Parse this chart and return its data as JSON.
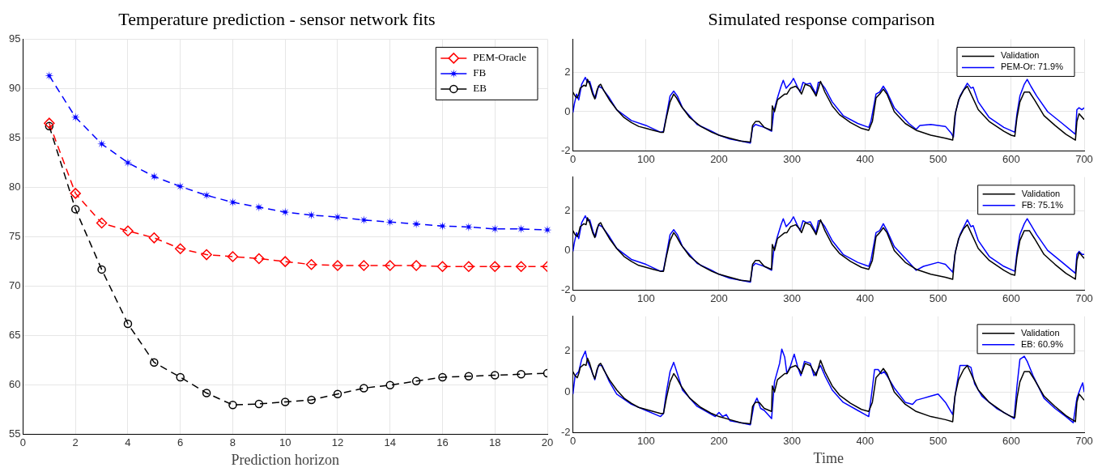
{
  "chart_data": [
    {
      "type": "line",
      "title": "Temperature prediction - sensor network fits",
      "xlabel": "Prediction horizon",
      "x": [
        1,
        2,
        3,
        4,
        5,
        6,
        7,
        8,
        9,
        10,
        11,
        12,
        13,
        14,
        15,
        16,
        17,
        18,
        19,
        20
      ],
      "xlim": [
        0,
        20
      ],
      "xticks": [
        0,
        2,
        4,
        6,
        8,
        10,
        12,
        14,
        16,
        18,
        20
      ],
      "ylim": [
        55,
        95
      ],
      "yticks": [
        55,
        60,
        65,
        70,
        75,
        80,
        85,
        90,
        95
      ],
      "grid": true,
      "legend": "top right",
      "line_style": "dashed",
      "series": [
        {
          "name": "PEM-Oracle",
          "color": "#ff0000",
          "marker": "diamond",
          "values": [
            86.5,
            79.4,
            76.4,
            75.6,
            74.9,
            73.8,
            73.2,
            73.0,
            72.8,
            72.5,
            72.2,
            72.1,
            72.1,
            72.1,
            72.1,
            72.0,
            72.0,
            72.0,
            72.0,
            72.0
          ]
        },
        {
          "name": "FB",
          "color": "#0000ff",
          "marker": "star",
          "values": [
            91.3,
            87.1,
            84.4,
            82.5,
            81.1,
            80.1,
            79.2,
            78.5,
            78.0,
            77.5,
            77.2,
            77.0,
            76.7,
            76.5,
            76.3,
            76.1,
            76.0,
            75.8,
            75.8,
            75.7
          ]
        },
        {
          "name": "EB",
          "color": "#000000",
          "marker": "circle",
          "values": [
            86.2,
            77.8,
            71.7,
            66.2,
            62.3,
            60.8,
            59.2,
            58.0,
            58.1,
            58.3,
            58.5,
            59.1,
            59.7,
            60.0,
            60.4,
            60.8,
            60.9,
            61.0,
            61.1,
            61.2
          ]
        }
      ]
    },
    {
      "type": "line",
      "title": "Simulated response comparison",
      "xlim": [
        0,
        700
      ],
      "xticks": [
        0,
        100,
        200,
        300,
        400,
        500,
        600,
        700
      ],
      "ylim": [
        -2,
        3.7
      ],
      "yticks": [
        -2,
        0,
        2
      ],
      "grid": true,
      "legend": "top right",
      "line_style": "solid",
      "marker": "none",
      "series": [
        {
          "name": "Validation",
          "color": "#000000",
          "x": [
            0,
            3,
            6,
            8,
            10,
            15,
            18,
            20,
            23,
            27,
            30,
            33,
            36,
            38,
            42,
            50,
            60,
            70,
            80,
            90,
            100,
            110,
            120,
            124,
            128,
            133,
            138,
            142,
            148,
            160,
            175,
            190,
            200,
            215,
            230,
            243,
            246,
            250,
            255,
            262,
            272,
            273,
            276,
            280,
            290,
            293,
            298,
            305,
            310,
            313,
            318,
            325,
            330,
            333,
            337,
            339,
            345,
            355,
            365,
            380,
            395,
            405,
            410,
            415,
            420,
            425,
            430,
            440,
            455,
            470,
            490,
            510,
            520,
            523,
            528,
            535,
            540,
            545,
            555,
            570,
            590,
            600,
            605,
            608,
            612,
            618,
            625,
            632,
            645,
            660,
            675,
            688,
            690,
            693,
            700
          ],
          "values": [
            1.0,
            0.8,
            0.7,
            0.9,
            1.2,
            1.35,
            1.3,
            1.65,
            1.4,
            0.9,
            0.65,
            1.1,
            1.35,
            1.4,
            1.1,
            0.6,
            0.1,
            -0.3,
            -0.55,
            -0.75,
            -0.85,
            -0.95,
            -1.05,
            -1.05,
            -0.3,
            0.5,
            0.9,
            0.7,
            0.3,
            -0.3,
            -0.75,
            -1.05,
            -1.2,
            -1.35,
            -1.5,
            -1.55,
            -0.7,
            -0.5,
            -0.5,
            -0.8,
            -0.95,
            0.3,
            0.0,
            0.6,
            0.9,
            0.9,
            1.2,
            1.3,
            1.1,
            0.9,
            1.4,
            1.3,
            1.0,
            0.8,
            1.3,
            1.55,
            1.0,
            0.3,
            -0.15,
            -0.55,
            -0.85,
            -0.95,
            -0.5,
            0.7,
            0.9,
            1.15,
            0.9,
            0.0,
            -0.6,
            -0.95,
            -1.2,
            -1.35,
            -1.45,
            -0.2,
            0.6,
            1.1,
            1.3,
            0.9,
            0.1,
            -0.5,
            -1.0,
            -1.2,
            -1.25,
            -0.3,
            0.5,
            1.0,
            1.0,
            0.6,
            -0.2,
            -0.7,
            -1.15,
            -1.45,
            -0.5,
            -0.1,
            -0.4
          ]
        },
        {
          "name": "PEM-Or: 71.9%",
          "color": "#0000ff",
          "x": [
            0,
            2,
            5,
            8,
            12,
            17,
            20,
            23,
            28,
            31,
            35,
            40,
            50,
            60,
            80,
            100,
            120,
            124,
            128,
            133,
            138,
            143,
            150,
            170,
            190,
            200,
            215,
            230,
            243,
            246,
            250,
            262,
            272,
            275,
            280,
            285,
            288,
            292,
            298,
            302,
            307,
            311,
            315,
            320,
            325,
            330,
            333,
            336,
            339,
            345,
            355,
            370,
            390,
            405,
            408,
            415,
            420,
            425,
            430,
            440,
            460,
            470,
            475,
            490,
            510,
            518,
            521,
            524,
            530,
            540,
            545,
            548,
            555,
            570,
            590,
            605,
            608,
            612,
            618,
            622,
            627,
            635,
            650,
            670,
            688,
            690,
            693,
            697,
            700
          ],
          "values": [
            -0.05,
            0.4,
            0.9,
            0.6,
            1.4,
            1.75,
            1.5,
            1.55,
            0.9,
            0.7,
            1.3,
            1.2,
            0.7,
            0.1,
            -0.45,
            -0.7,
            -1.05,
            -1.0,
            -0.2,
            0.8,
            1.05,
            0.8,
            0.2,
            -0.65,
            -1.0,
            -1.2,
            -1.4,
            -1.5,
            -1.6,
            -0.8,
            -0.65,
            -0.8,
            -1.0,
            0.0,
            0.7,
            1.3,
            1.6,
            1.2,
            1.45,
            1.7,
            1.3,
            1.0,
            1.5,
            1.4,
            1.45,
            1.1,
            0.9,
            1.5,
            1.5,
            1.2,
            0.5,
            -0.2,
            -0.6,
            -0.8,
            -0.5,
            0.9,
            1.0,
            1.3,
            1.0,
            0.2,
            -0.6,
            -0.9,
            -0.7,
            -0.65,
            -0.75,
            -1.1,
            -1.3,
            0.0,
            0.8,
            1.45,
            1.2,
            1.25,
            0.5,
            -0.3,
            -0.8,
            -1.05,
            -0.1,
            0.8,
            1.4,
            1.65,
            1.3,
            0.8,
            0.0,
            -0.6,
            -1.15,
            0.1,
            0.2,
            0.1,
            0.2
          ]
        }
      ]
    },
    {
      "type": "line",
      "xlim": [
        0,
        700
      ],
      "xticks": [
        0,
        100,
        200,
        300,
        400,
        500,
        600,
        700
      ],
      "ylim": [
        -2,
        3.7
      ],
      "yticks": [
        -2,
        0,
        2
      ],
      "grid": true,
      "legend": "top right",
      "line_style": "solid",
      "marker": "none",
      "series": [
        {
          "name": "Validation",
          "color": "#000000",
          "x": [
            0,
            3,
            6,
            8,
            10,
            15,
            18,
            20,
            23,
            27,
            30,
            33,
            36,
            38,
            42,
            50,
            60,
            70,
            80,
            90,
            100,
            110,
            120,
            124,
            128,
            133,
            138,
            142,
            148,
            160,
            175,
            190,
            200,
            215,
            230,
            243,
            246,
            250,
            255,
            262,
            272,
            273,
            276,
            280,
            290,
            293,
            298,
            305,
            310,
            313,
            318,
            325,
            330,
            333,
            337,
            339,
            345,
            355,
            365,
            380,
            395,
            405,
            410,
            415,
            420,
            425,
            430,
            440,
            455,
            470,
            490,
            510,
            520,
            523,
            528,
            535,
            540,
            545,
            555,
            570,
            590,
            600,
            605,
            608,
            612,
            618,
            625,
            632,
            645,
            660,
            675,
            688,
            690,
            693,
            700
          ],
          "values": [
            1.0,
            0.8,
            0.7,
            0.9,
            1.2,
            1.35,
            1.3,
            1.65,
            1.4,
            0.9,
            0.65,
            1.1,
            1.35,
            1.4,
            1.1,
            0.6,
            0.1,
            -0.3,
            -0.55,
            -0.75,
            -0.85,
            -0.95,
            -1.05,
            -1.05,
            -0.3,
            0.5,
            0.9,
            0.7,
            0.3,
            -0.3,
            -0.75,
            -1.05,
            -1.2,
            -1.35,
            -1.5,
            -1.55,
            -0.7,
            -0.5,
            -0.5,
            -0.8,
            -0.95,
            0.3,
            0.0,
            0.6,
            0.9,
            0.9,
            1.2,
            1.3,
            1.1,
            0.9,
            1.4,
            1.3,
            1.0,
            0.8,
            1.3,
            1.55,
            1.0,
            0.3,
            -0.15,
            -0.55,
            -0.85,
            -0.95,
            -0.5,
            0.7,
            0.9,
            1.15,
            0.9,
            0.0,
            -0.6,
            -0.95,
            -1.2,
            -1.35,
            -1.45,
            -0.2,
            0.6,
            1.1,
            1.3,
            0.9,
            0.1,
            -0.5,
            -1.0,
            -1.2,
            -1.25,
            -0.3,
            0.5,
            1.0,
            1.0,
            0.6,
            -0.2,
            -0.7,
            -1.15,
            -1.45,
            -0.5,
            -0.1,
            -0.4
          ]
        },
        {
          "name": "FB: 75.1%",
          "color": "#0000ff",
          "x": [
            0,
            2,
            5,
            8,
            12,
            17,
            20,
            23,
            28,
            31,
            35,
            40,
            50,
            60,
            80,
            100,
            120,
            124,
            128,
            133,
            138,
            143,
            150,
            170,
            190,
            200,
            215,
            230,
            243,
            246,
            250,
            262,
            272,
            275,
            280,
            285,
            288,
            292,
            298,
            302,
            307,
            311,
            315,
            320,
            325,
            330,
            333,
            336,
            339,
            345,
            355,
            370,
            390,
            405,
            408,
            415,
            420,
            425,
            430,
            440,
            460,
            470,
            480,
            500,
            510,
            520,
            524,
            530,
            540,
            545,
            548,
            555,
            570,
            590,
            605,
            608,
            612,
            618,
            622,
            627,
            635,
            650,
            670,
            688,
            690,
            693,
            697,
            700
          ],
          "values": [
            -0.05,
            0.4,
            0.9,
            0.6,
            1.4,
            1.75,
            1.5,
            1.55,
            0.9,
            0.7,
            1.3,
            1.2,
            0.7,
            0.1,
            -0.45,
            -0.7,
            -1.05,
            -1.0,
            -0.2,
            0.8,
            1.05,
            0.8,
            0.2,
            -0.65,
            -1.0,
            -1.2,
            -1.4,
            -1.5,
            -1.6,
            -0.8,
            -0.65,
            -0.8,
            -1.0,
            0.0,
            0.7,
            1.3,
            1.6,
            1.2,
            1.45,
            1.7,
            1.3,
            1.0,
            1.5,
            1.4,
            1.45,
            1.1,
            0.9,
            1.5,
            1.5,
            1.2,
            0.5,
            -0.2,
            -0.6,
            -0.8,
            -0.5,
            0.9,
            1.0,
            1.35,
            1.0,
            0.2,
            -0.6,
            -1.0,
            -0.8,
            -0.6,
            -0.7,
            -1.1,
            0.0,
            0.8,
            1.55,
            1.2,
            1.25,
            0.5,
            -0.3,
            -0.8,
            -1.05,
            -0.1,
            0.8,
            1.35,
            1.6,
            1.3,
            0.8,
            0.0,
            -0.6,
            -1.15,
            -0.2,
            -0.05,
            -0.2,
            -0.2
          ]
        }
      ]
    },
    {
      "type": "line",
      "xlabel": "Time",
      "xlim": [
        0,
        700
      ],
      "xticks": [
        0,
        100,
        200,
        300,
        400,
        500,
        600,
        700
      ],
      "ylim": [
        -2,
        3.7
      ],
      "yticks": [
        -2,
        0,
        2
      ],
      "grid": true,
      "legend": "top right",
      "line_style": "solid",
      "marker": "none",
      "series": [
        {
          "name": "Validation",
          "color": "#000000",
          "x": [
            0,
            3,
            6,
            8,
            10,
            15,
            18,
            20,
            23,
            27,
            30,
            33,
            36,
            38,
            42,
            50,
            60,
            70,
            80,
            90,
            100,
            110,
            120,
            124,
            128,
            133,
            138,
            142,
            148,
            160,
            175,
            190,
            200,
            215,
            230,
            243,
            246,
            250,
            255,
            262,
            272,
            273,
            276,
            280,
            290,
            293,
            298,
            305,
            310,
            313,
            318,
            325,
            330,
            333,
            337,
            339,
            345,
            355,
            365,
            380,
            395,
            405,
            410,
            415,
            420,
            425,
            430,
            440,
            455,
            470,
            490,
            510,
            520,
            523,
            528,
            535,
            540,
            545,
            555,
            570,
            590,
            600,
            605,
            608,
            612,
            618,
            625,
            632,
            645,
            660,
            675,
            688,
            690,
            693,
            700
          ],
          "values": [
            1.0,
            0.8,
            0.7,
            0.9,
            1.2,
            1.35,
            1.3,
            1.65,
            1.4,
            0.9,
            0.65,
            1.1,
            1.35,
            1.4,
            1.1,
            0.6,
            0.1,
            -0.3,
            -0.55,
            -0.75,
            -0.85,
            -0.95,
            -1.05,
            -1.05,
            -0.3,
            0.5,
            0.9,
            0.7,
            0.3,
            -0.3,
            -0.75,
            -1.05,
            -1.2,
            -1.35,
            -1.5,
            -1.55,
            -0.7,
            -0.5,
            -0.5,
            -0.8,
            -0.95,
            0.3,
            0.0,
            0.6,
            0.9,
            0.9,
            1.2,
            1.3,
            1.1,
            0.9,
            1.4,
            1.3,
            1.0,
            0.8,
            1.3,
            1.55,
            1.0,
            0.3,
            -0.15,
            -0.55,
            -0.85,
            -0.95,
            -0.5,
            0.7,
            0.9,
            1.15,
            0.9,
            0.0,
            -0.6,
            -0.95,
            -1.2,
            -1.35,
            -1.45,
            -0.2,
            0.6,
            1.1,
            1.3,
            0.9,
            0.1,
            -0.5,
            -1.0,
            -1.2,
            -1.25,
            -0.3,
            0.5,
            1.0,
            1.0,
            0.6,
            -0.2,
            -0.7,
            -1.15,
            -1.45,
            -0.5,
            -0.1,
            -0.4
          ]
        },
        {
          "name": "EB: 60.9%",
          "color": "#0000ff",
          "x": [
            0,
            3,
            8,
            12,
            17,
            20,
            25,
            30,
            35,
            40,
            50,
            60,
            80,
            100,
            120,
            124,
            128,
            133,
            138,
            143,
            150,
            170,
            190,
            195,
            200,
            205,
            210,
            215,
            230,
            243,
            248,
            252,
            257,
            262,
            272,
            276,
            283,
            286,
            290,
            293,
            298,
            303,
            308,
            312,
            317,
            325,
            330,
            334,
            339,
            345,
            355,
            370,
            390,
            405,
            410,
            413,
            418,
            422,
            426,
            430,
            440,
            455,
            465,
            470,
            480,
            490,
            500,
            510,
            520,
            524,
            530,
            540,
            545,
            550,
            560,
            580,
            600,
            604,
            608,
            612,
            618,
            622,
            630,
            645,
            660,
            675,
            685,
            690,
            695,
            698,
            700
          ],
          "values": [
            -0.1,
            0.8,
            1.0,
            1.6,
            2.0,
            1.5,
            1.1,
            0.6,
            1.3,
            1.3,
            0.5,
            -0.1,
            -0.6,
            -0.9,
            -1.2,
            -1.05,
            0.0,
            1.0,
            1.45,
            0.9,
            0.1,
            -0.7,
            -1.1,
            -1.2,
            -1.0,
            -1.2,
            -1.1,
            -1.4,
            -1.5,
            -1.6,
            -0.6,
            -0.3,
            -0.8,
            -0.9,
            -1.3,
            0.5,
            1.4,
            2.1,
            1.7,
            0.9,
            1.3,
            1.85,
            1.2,
            0.8,
            1.5,
            1.4,
            0.8,
            1.0,
            1.3,
            0.8,
            0.1,
            -0.5,
            -0.9,
            -1.2,
            0.2,
            1.1,
            1.1,
            0.9,
            1.0,
            0.8,
            0.2,
            -0.5,
            -0.6,
            -0.4,
            -0.3,
            -0.2,
            -0.1,
            -0.5,
            -1.1,
            0.0,
            1.3,
            1.3,
            1.2,
            0.4,
            -0.2,
            -0.8,
            -1.2,
            -1.3,
            0.3,
            1.6,
            1.75,
            1.5,
            0.8,
            -0.3,
            -0.8,
            -1.2,
            -1.5,
            -0.3,
            0.2,
            0.45,
            0.0
          ]
        }
      ]
    }
  ]
}
